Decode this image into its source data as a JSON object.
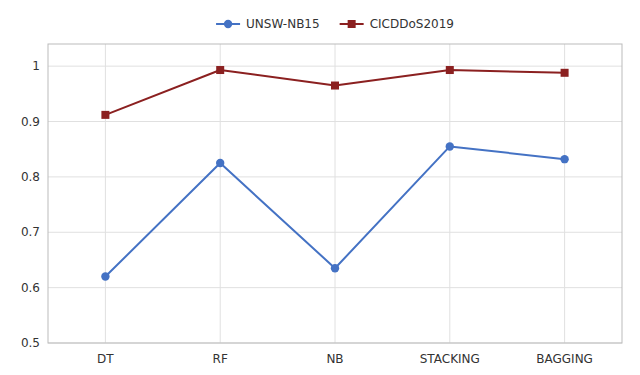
{
  "chart_data": {
    "type": "line",
    "categories": [
      "DT",
      "RF",
      "NB",
      "STACKING",
      "BAGGING"
    ],
    "series": [
      {
        "name": "UNSW-NB15",
        "color": "#4472c4",
        "marker": "circle",
        "values": [
          0.62,
          0.825,
          0.635,
          0.855,
          0.832
        ]
      },
      {
        "name": "CICDDoS2019",
        "color": "#8b2020",
        "marker": "square",
        "values": [
          0.912,
          0.993,
          0.965,
          0.993,
          0.988
        ]
      }
    ],
    "ylim": [
      0.5,
      1.04
    ],
    "yticks": [
      0.5,
      0.6,
      0.7,
      0.8,
      0.9,
      1
    ],
    "grid": true,
    "legend": "top"
  }
}
